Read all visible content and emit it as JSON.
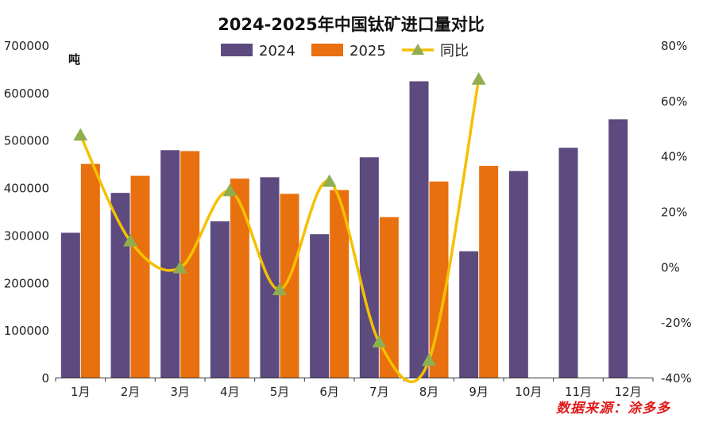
{
  "chart_data": {
    "type": "bar",
    "title": "2024-2025年中国钛矿进口量对比",
    "unit_label": "吨",
    "categories": [
      "1月",
      "2月",
      "3月",
      "4月",
      "5月",
      "6月",
      "7月",
      "8月",
      "9月",
      "10月",
      "11月",
      "12月"
    ],
    "series": [
      {
        "name": "2024",
        "type": "bar",
        "color": "#5d4a7e",
        "values": [
          305000,
          389000,
          479000,
          329000,
          422000,
          302000,
          464000,
          624000,
          266000,
          435000,
          484000,
          544000
        ]
      },
      {
        "name": "2025",
        "type": "bar",
        "color": "#e8700f",
        "values": [
          450000,
          425000,
          477000,
          419000,
          387000,
          395000,
          338000,
          413000,
          446000,
          null,
          null,
          null
        ]
      },
      {
        "name": "同比",
        "type": "line",
        "axis": "right",
        "color": "#f5c000",
        "marker_color": "#8fae4f",
        "values": [
          47.5,
          9.3,
          -0.4,
          27.4,
          -8.3,
          30.8,
          -27.2,
          -33.8,
          67.7,
          null,
          null,
          null
        ]
      }
    ],
    "y_left": {
      "min": 0,
      "max": 700000,
      "ticks": [
        "0",
        "100000",
        "200000",
        "300000",
        "400000",
        "500000",
        "600000",
        "700000"
      ]
    },
    "y_right": {
      "min": -40,
      "max": 80,
      "ticks": [
        "-40%",
        "-20%",
        "0%",
        "20%",
        "40%",
        "60%",
        "80%"
      ]
    },
    "legend": [
      "2024",
      "2025",
      "同比"
    ],
    "legend_position": "top"
  },
  "source_label": "数据来源：涂多多"
}
